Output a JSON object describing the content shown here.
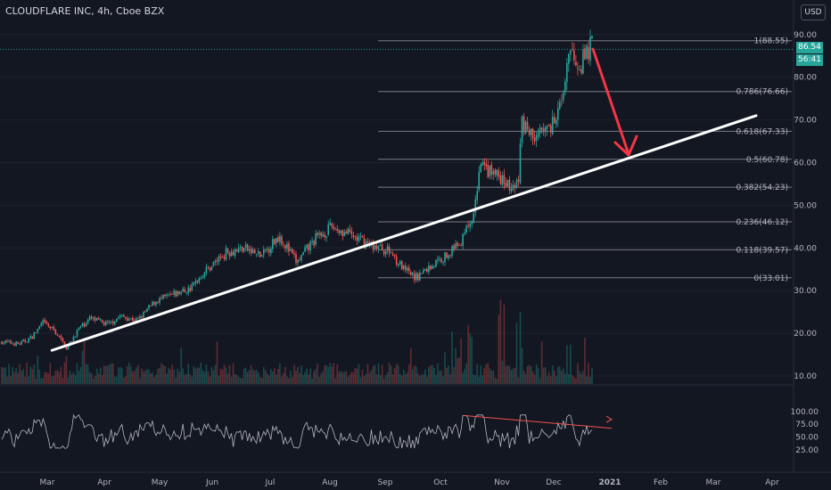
{
  "header": {
    "title": "CLOUDFLARE INC, 4h, Cboe BZX",
    "currency_button": "USD",
    "last_price": "86.54",
    "countdown": "56:41"
  },
  "colors": {
    "background": "#131722",
    "up": "#26a69a",
    "down": "#ef5350",
    "trendline": "#ffffff",
    "arrow": "#f23645",
    "fib": "#787b86"
  },
  "chart_data": [
    {
      "type": "candlestick",
      "ylim": [
        8,
        92
      ],
      "price_scale_ticks": [
        "90.00",
        "80.00",
        "70.00",
        "60.00",
        "50.00",
        "40.00",
        "30.00",
        "20.00",
        "10.00"
      ],
      "tick_values": [
        90,
        80,
        70,
        60,
        50,
        40,
        30,
        20,
        10
      ],
      "x_labels": [
        "Mar",
        "Apr",
        "May",
        "Jun",
        "Jul",
        "Aug",
        "Sep",
        "Oct",
        "Nov",
        "Dec",
        "2021",
        "Feb",
        "Mar",
        "Apr"
      ],
      "fib_levels": [
        {
          "ratio": "1(88.55)",
          "value": 88.55
        },
        {
          "ratio": "0.786(76.66)",
          "value": 76.66
        },
        {
          "ratio": "0.618(67.33)",
          "value": 67.33
        },
        {
          "ratio": "0.5(60.78)",
          "value": 60.78
        },
        {
          "ratio": "0.382(54.23)",
          "value": 54.23
        },
        {
          "ratio": "0.236(46.12)",
          "value": 46.12
        },
        {
          "ratio": "0.118(39.57)",
          "value": 39.57
        },
        {
          "ratio": "0(33.01)",
          "value": 33.01
        }
      ],
      "price_path": [
        [
          0,
          18
        ],
        [
          0.03,
          17.5
        ],
        [
          0.05,
          19
        ],
        [
          0.07,
          22.5
        ],
        [
          0.09,
          20.5
        ],
        [
          0.11,
          16.5
        ],
        [
          0.13,
          21
        ],
        [
          0.15,
          23.5
        ],
        [
          0.18,
          22
        ],
        [
          0.2,
          24
        ],
        [
          0.23,
          23
        ],
        [
          0.26,
          27.5
        ],
        [
          0.29,
          29
        ],
        [
          0.32,
          30.5
        ],
        [
          0.34,
          34
        ],
        [
          0.38,
          39
        ],
        [
          0.41,
          40
        ],
        [
          0.44,
          38
        ],
        [
          0.47,
          43
        ],
        [
          0.5,
          36.5
        ],
        [
          0.53,
          42
        ],
        [
          0.56,
          45
        ],
        [
          0.59,
          43
        ],
        [
          0.62,
          41
        ],
        [
          0.64,
          40
        ],
        [
          0.66,
          39
        ],
        [
          0.68,
          35
        ],
        [
          0.7,
          33
        ],
        [
          0.72,
          35
        ],
        [
          0.75,
          38
        ],
        [
          0.78,
          42
        ],
        [
          0.8,
          48
        ],
        [
          0.81,
          59
        ],
        [
          0.84,
          57
        ],
        [
          0.86,
          54
        ],
        [
          0.875,
          55
        ],
        [
          0.88,
          70
        ],
        [
          0.9,
          66
        ],
        [
          0.93,
          68
        ],
        [
          0.95,
          77
        ],
        [
          0.965,
          86
        ],
        [
          0.98,
          83
        ],
        [
          1,
          88
        ]
      ],
      "trendline": {
        "from": [
          0.085,
          16
        ],
        "to": [
          0.92,
          71
        ]
      }
    },
    {
      "type": "line",
      "indicator": "RSI",
      "ylim": [
        20,
        102
      ],
      "tick_labels": [
        "100.00",
        "75.00",
        "50.00",
        "25.00"
      ],
      "tick_values": [
        100,
        75,
        50,
        25
      ]
    }
  ]
}
